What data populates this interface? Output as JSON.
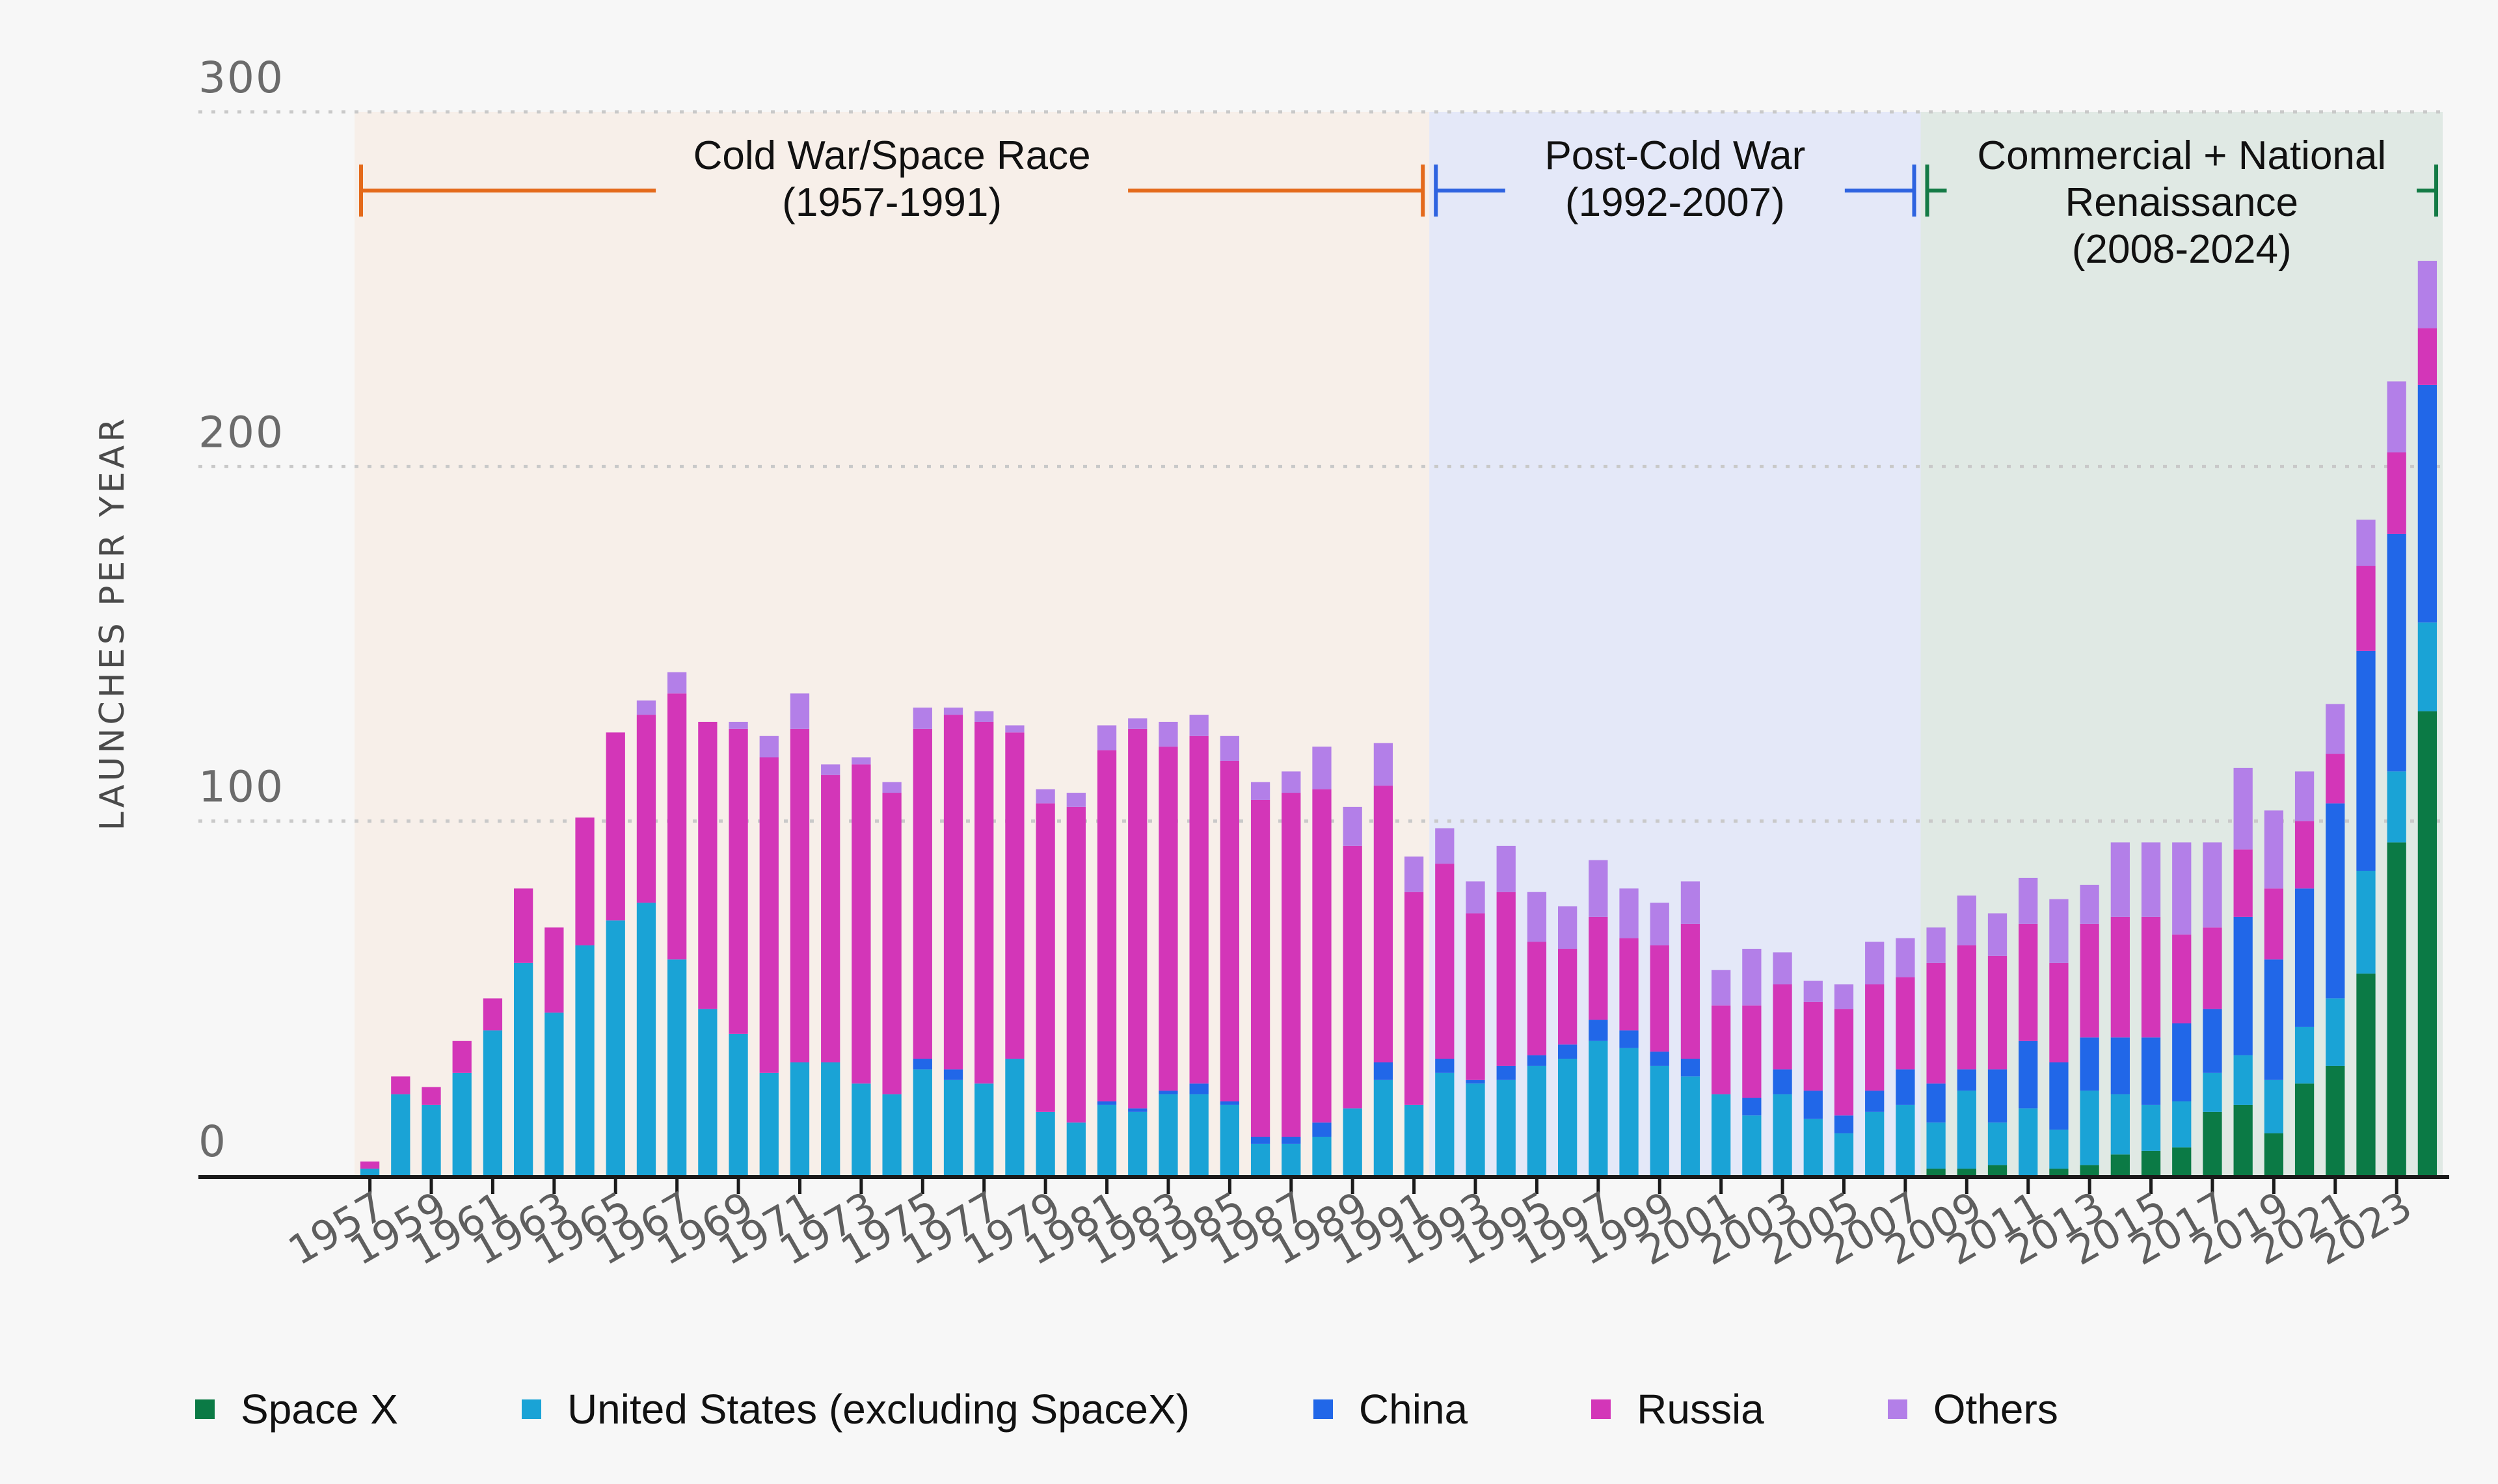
{
  "chart_data": {
    "type": "bar",
    "stacked": true,
    "ylabel": "LAUNCHES PER YEAR",
    "xlabel": "",
    "ylim": [
      0,
      300
    ],
    "yticks": [
      0,
      100,
      200,
      300
    ],
    "grid": true,
    "legend_position": "bottom",
    "x": [
      1957,
      1958,
      1959,
      1960,
      1961,
      1962,
      1963,
      1964,
      1965,
      1966,
      1967,
      1968,
      1969,
      1970,
      1971,
      1972,
      1973,
      1974,
      1975,
      1976,
      1977,
      1978,
      1979,
      1980,
      1981,
      1982,
      1983,
      1984,
      1985,
      1986,
      1987,
      1988,
      1989,
      1990,
      1991,
      1992,
      1993,
      1994,
      1995,
      1996,
      1997,
      1998,
      1999,
      2000,
      2001,
      2002,
      2003,
      2004,
      2005,
      2006,
      2007,
      2008,
      2009,
      2010,
      2011,
      2012,
      2013,
      2014,
      2015,
      2016,
      2017,
      2018,
      2019,
      2020,
      2021,
      2022,
      2023,
      2024
    ],
    "xtick_labels": [
      "1957",
      "1959",
      "1961",
      "1963",
      "1965",
      "1967",
      "1969",
      "1971",
      "1973",
      "1975",
      "1977",
      "1979",
      "1981",
      "1983",
      "1985",
      "1987",
      "1989",
      "1991",
      "1993",
      "1995",
      "1997",
      "1999",
      "2001",
      "2003",
      "2005",
      "2007",
      "2009",
      "2011",
      "2013",
      "2015",
      "2017",
      "2019",
      "2021",
      "2023"
    ],
    "series": [
      {
        "name": "Space X",
        "color": "#0b7a45",
        "values": [
          0,
          0,
          0,
          0,
          0,
          0,
          0,
          0,
          0,
          0,
          0,
          0,
          0,
          0,
          0,
          0,
          0,
          0,
          0,
          0,
          0,
          0,
          0,
          0,
          0,
          0,
          0,
          0,
          0,
          0,
          0,
          0,
          0,
          0,
          0,
          0,
          0,
          0,
          0,
          0,
          0,
          0,
          0,
          0,
          0,
          0,
          0,
          0,
          0,
          0,
          0,
          2,
          2,
          3,
          0,
          2,
          3,
          6,
          7,
          8,
          18,
          20,
          12,
          26,
          31,
          57,
          94,
          131
        ]
      },
      {
        "name": "United States (excluding SpaceX)",
        "color": "#1aa3d6",
        "values": [
          2,
          23,
          20,
          29,
          41,
          60,
          46,
          65,
          72,
          77,
          61,
          47,
          40,
          29,
          32,
          32,
          26,
          23,
          30,
          27,
          26,
          33,
          18,
          15,
          20,
          18,
          23,
          23,
          20,
          9,
          9,
          11,
          19,
          27,
          20,
          29,
          26,
          27,
          31,
          33,
          38,
          36,
          31,
          28,
          23,
          17,
          23,
          16,
          12,
          18,
          20,
          13,
          22,
          12,
          19,
          11,
          21,
          17,
          13,
          13,
          11,
          14,
          15,
          16,
          19,
          29,
          20,
          25
        ]
      },
      {
        "name": "China",
        "color": "#2167e8",
        "values": [
          0,
          0,
          0,
          0,
          0,
          0,
          0,
          0,
          0,
          0,
          0,
          0,
          0,
          0,
          0,
          0,
          0,
          0,
          3,
          3,
          0,
          0,
          0,
          0,
          1,
          1,
          1,
          3,
          1,
          2,
          2,
          4,
          0,
          5,
          0,
          4,
          1,
          4,
          3,
          4,
          6,
          5,
          4,
          5,
          0,
          5,
          7,
          8,
          5,
          6,
          10,
          11,
          6,
          15,
          19,
          19,
          15,
          16,
          19,
          22,
          18,
          39,
          34,
          39,
          55,
          62,
          67,
          67
        ]
      },
      {
        "name": "Russia",
        "color": "#d336b8",
        "values": [
          2,
          5,
          5,
          9,
          9,
          21,
          24,
          36,
          53,
          53,
          75,
          81,
          86,
          89,
          94,
          81,
          90,
          85,
          93,
          100,
          102,
          92,
          87,
          89,
          99,
          107,
          97,
          98,
          96,
          95,
          97,
          94,
          74,
          78,
          60,
          55,
          47,
          49,
          32,
          27,
          29,
          26,
          30,
          38,
          25,
          26,
          24,
          25,
          30,
          30,
          26,
          34,
          35,
          32,
          33,
          28,
          32,
          34,
          34,
          25,
          23,
          19,
          20,
          19,
          14,
          24,
          23,
          16
        ]
      },
      {
        "name": "Others",
        "color": "#b37fe8",
        "values": [
          0,
          0,
          0,
          0,
          0,
          0,
          0,
          0,
          0,
          4,
          6,
          0,
          2,
          6,
          10,
          3,
          2,
          3,
          6,
          2,
          3,
          2,
          4,
          4,
          7,
          3,
          7,
          6,
          7,
          5,
          6,
          12,
          11,
          12,
          10,
          10,
          9,
          13,
          14,
          12,
          16,
          14,
          12,
          12,
          10,
          16,
          9,
          6,
          7,
          12,
          11,
          10,
          14,
          12,
          13,
          18,
          11,
          21,
          21,
          26,
          24,
          23,
          22,
          14,
          14,
          13,
          20,
          19
        ]
      }
    ],
    "eras": [
      {
        "label_line1": "Cold War/Space Race",
        "label_line2": "(1957-1991)",
        "label_line3": "",
        "start": 1957,
        "end": 1991,
        "fill": "#f7efe9",
        "line": "#e46a1b"
      },
      {
        "label_line1": "Post-Cold War",
        "label_line2": "(1992-2007)",
        "label_line3": "",
        "start": 1992,
        "end": 2007,
        "fill": "#e4e8f8",
        "line": "#2e63e0"
      },
      {
        "label_line1": "Commercial + National",
        "label_line2": "Renaissance",
        "label_line3": "(2008-2024)",
        "start": 2008,
        "end": 2024,
        "fill": "#e0e9e4",
        "line": "#137a45"
      }
    ]
  }
}
